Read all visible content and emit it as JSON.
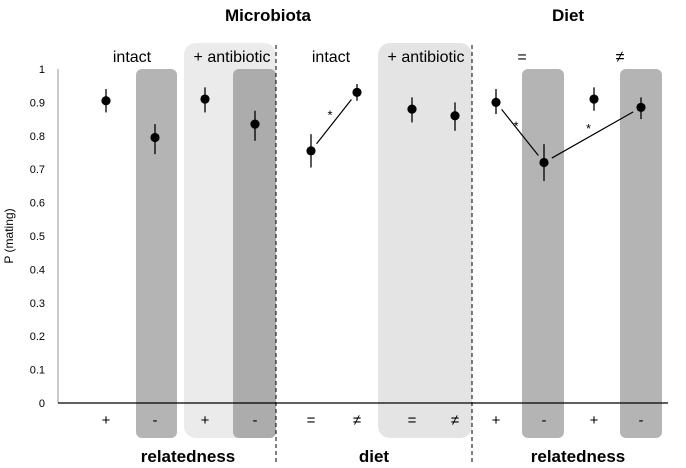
{
  "chart_data": {
    "type": "scatter",
    "ylabel": "P (mating)",
    "ylim": [
      0,
      1
    ],
    "yticks": [
      "0",
      "0.1",
      "0.2",
      "0.3",
      "0.4",
      "0.5",
      "0.6",
      "0.7",
      "0.8",
      "0.9",
      "1"
    ],
    "titles": [
      {
        "id": "microbiota",
        "text": "Microbiota"
      },
      {
        "id": "diet",
        "text": "Diet"
      }
    ],
    "conditions": [
      "intact",
      "+ antibiotic",
      "intact",
      "+ antibiotic",
      "=",
      "≠"
    ],
    "categories": [
      "+",
      "-",
      "+",
      "-",
      "=",
      "≠",
      "=",
      "≠",
      "+",
      "-",
      "+",
      "-"
    ],
    "group_labels": [
      "relatedness",
      "diet",
      "relatedness"
    ],
    "series": [
      {
        "name": "P (mating)",
        "values": [
          0.905,
          0.795,
          0.91,
          0.835,
          0.755,
          0.93,
          0.88,
          0.86,
          0.9,
          0.72,
          0.91,
          0.885
        ],
        "err_low": [
          0.87,
          0.745,
          0.87,
          0.785,
          0.705,
          0.905,
          0.84,
          0.815,
          0.865,
          0.665,
          0.875,
          0.85
        ],
        "err_high": [
          0.94,
          0.835,
          0.945,
          0.875,
          0.805,
          0.955,
          0.915,
          0.9,
          0.94,
          0.775,
          0.945,
          0.915
        ]
      }
    ],
    "annotations": [
      {
        "text": "*",
        "from": 4,
        "to": 5
      },
      {
        "text": "*",
        "from": 8,
        "to": 9
      },
      {
        "text": "*",
        "from": 9,
        "to": 11
      }
    ]
  }
}
